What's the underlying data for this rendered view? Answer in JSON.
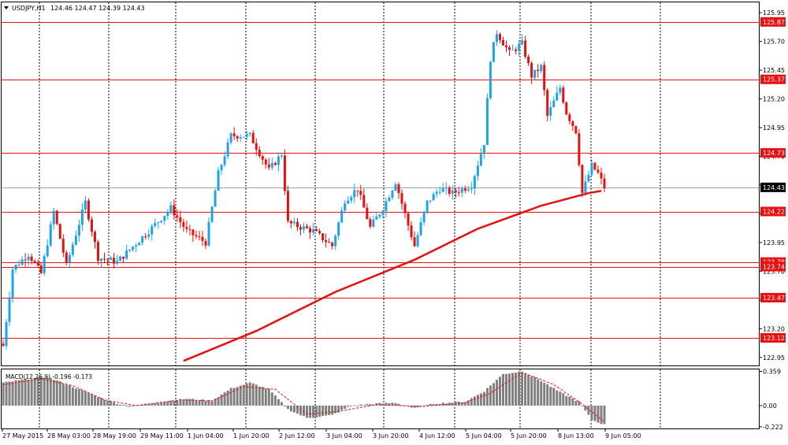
{
  "header": {
    "symbol_text": "USDJPY,H1",
    "ohlc_text": "124.46 124.47 124.39 124.43"
  },
  "colors": {
    "bull": "#1fa3e8",
    "bear": "#e51010",
    "level_line": "#e81010",
    "ma_line": "#e81010",
    "grid": "#000000",
    "bid_line": "#9aa8a8",
    "macd_bars": "#808080",
    "macd_signal": "#e81010"
  },
  "chart_data": [
    {
      "type": "candlestick",
      "symbol": "USDJPY",
      "timeframe": "H1",
      "ylim": [
        122.88,
        126.04
      ],
      "y_ticks": [
        "125.95",
        "125.70",
        "125.45",
        "125.20",
        "124.95",
        "124.70",
        "124.45",
        "124.20",
        "123.95",
        "123.70",
        "123.45",
        "123.20",
        "122.95"
      ],
      "x_ticks": [
        "27 May 2015",
        "28 May 03:00",
        "28 May 19:00",
        "29 May 11:00",
        "1 Jun 04:00",
        "1 Jun 20:00",
        "2 Jun 12:00",
        "3 Jun 04:00",
        "3 Jun 20:00",
        "4 Jun 12:00",
        "5 Jun 04:00",
        "5 Jun 20:00",
        "8 Jun 13:00",
        "9 Jun 05:00"
      ],
      "grid": "vertical dotted separators at day boundaries",
      "current_price": "124.43",
      "horizontal_levels": [
        "125.87",
        "125.37",
        "124.73",
        "124.22",
        "123.78",
        "123.74",
        "123.47",
        "123.12"
      ],
      "moving_average": {
        "points": [
          {
            "bar": 57,
            "price": 122.92
          },
          {
            "bar": 80,
            "price": 123.18
          },
          {
            "bar": 105,
            "price": 123.52
          },
          {
            "bar": 130,
            "price": 123.8
          },
          {
            "bar": 150,
            "price": 124.07
          },
          {
            "bar": 170,
            "price": 124.27
          },
          {
            "bar": 185,
            "price": 124.38
          },
          {
            "bar": 189,
            "price": 124.4
          }
        ]
      },
      "ohlc_anchor_closes": [
        {
          "bar": 0,
          "close": 123.05
        },
        {
          "bar": 3,
          "close": 123.72
        },
        {
          "bar": 8,
          "close": 123.85
        },
        {
          "bar": 12,
          "close": 123.68
        },
        {
          "bar": 16,
          "close": 124.22
        },
        {
          "bar": 20,
          "close": 123.75
        },
        {
          "bar": 26,
          "close": 124.3
        },
        {
          "bar": 30,
          "close": 123.82
        },
        {
          "bar": 36,
          "close": 123.78
        },
        {
          "bar": 46,
          "close": 124.05
        },
        {
          "bar": 53,
          "close": 124.25
        },
        {
          "bar": 58,
          "close": 124.05
        },
        {
          "bar": 64,
          "close": 123.95
        },
        {
          "bar": 68,
          "close": 124.55
        },
        {
          "bar": 72,
          "close": 124.88
        },
        {
          "bar": 78,
          "close": 124.88
        },
        {
          "bar": 84,
          "close": 124.58
        },
        {
          "bar": 88,
          "close": 124.72
        },
        {
          "bar": 90,
          "close": 124.12
        },
        {
          "bar": 98,
          "close": 124.05
        },
        {
          "bar": 104,
          "close": 123.92
        },
        {
          "bar": 108,
          "close": 124.32
        },
        {
          "bar": 112,
          "close": 124.42
        },
        {
          "bar": 116,
          "close": 124.08
        },
        {
          "bar": 120,
          "close": 124.25
        },
        {
          "bar": 124,
          "close": 124.48
        },
        {
          "bar": 128,
          "close": 124.1
        },
        {
          "bar": 130,
          "close": 123.92
        },
        {
          "bar": 134,
          "close": 124.3
        },
        {
          "bar": 138,
          "close": 124.42
        },
        {
          "bar": 142,
          "close": 124.38
        },
        {
          "bar": 148,
          "close": 124.45
        },
        {
          "bar": 152,
          "close": 124.82
        },
        {
          "bar": 154,
          "close": 125.55
        },
        {
          "bar": 156,
          "close": 125.78
        },
        {
          "bar": 160,
          "close": 125.6
        },
        {
          "bar": 164,
          "close": 125.68
        },
        {
          "bar": 167,
          "close": 125.4
        },
        {
          "bar": 170,
          "close": 125.48
        },
        {
          "bar": 172,
          "close": 125.05
        },
        {
          "bar": 176,
          "close": 125.3
        },
        {
          "bar": 178,
          "close": 125.08
        },
        {
          "bar": 181,
          "close": 124.92
        },
        {
          "bar": 183,
          "close": 124.38
        },
        {
          "bar": 186,
          "close": 124.62
        },
        {
          "bar": 188,
          "close": 124.55
        },
        {
          "bar": 190,
          "close": 124.43
        }
      ]
    },
    {
      "type": "bar",
      "indicator": "MACD(12,26,9)",
      "label_text": "MACD(12,26,9) -0.196 -0.173",
      "ylim": [
        -0.24,
        0.38
      ],
      "y_ticks": [
        "0.359",
        "0.00",
        "-0.222"
      ],
      "hist_anchors": [
        {
          "bar": 0,
          "value": 0.24
        },
        {
          "bar": 8,
          "value": 0.28
        },
        {
          "bar": 14,
          "value": 0.3
        },
        {
          "bar": 24,
          "value": 0.17
        },
        {
          "bar": 34,
          "value": 0.04
        },
        {
          "bar": 40,
          "value": -0.01
        },
        {
          "bar": 50,
          "value": 0.04
        },
        {
          "bar": 58,
          "value": 0.07
        },
        {
          "bar": 66,
          "value": 0.05
        },
        {
          "bar": 72,
          "value": 0.18
        },
        {
          "bar": 78,
          "value": 0.24
        },
        {
          "bar": 84,
          "value": 0.17
        },
        {
          "bar": 90,
          "value": -0.04
        },
        {
          "bar": 96,
          "value": -0.13
        },
        {
          "bar": 104,
          "value": -0.1
        },
        {
          "bar": 110,
          "value": 0.0
        },
        {
          "bar": 118,
          "value": 0.02
        },
        {
          "bar": 124,
          "value": 0.03
        },
        {
          "bar": 130,
          "value": -0.03
        },
        {
          "bar": 136,
          "value": 0.02
        },
        {
          "bar": 146,
          "value": 0.04
        },
        {
          "bar": 152,
          "value": 0.15
        },
        {
          "bar": 158,
          "value": 0.33
        },
        {
          "bar": 164,
          "value": 0.36
        },
        {
          "bar": 170,
          "value": 0.26
        },
        {
          "bar": 176,
          "value": 0.14
        },
        {
          "bar": 182,
          "value": 0.04
        },
        {
          "bar": 186,
          "value": -0.15
        },
        {
          "bar": 190,
          "value": -0.2
        }
      ],
      "signal_anchors": [
        {
          "bar": 0,
          "value": 0.22
        },
        {
          "bar": 12,
          "value": 0.28
        },
        {
          "bar": 22,
          "value": 0.21
        },
        {
          "bar": 32,
          "value": 0.06
        },
        {
          "bar": 42,
          "value": 0.0
        },
        {
          "bar": 56,
          "value": 0.06
        },
        {
          "bar": 66,
          "value": 0.05
        },
        {
          "bar": 76,
          "value": 0.2
        },
        {
          "bar": 86,
          "value": 0.17
        },
        {
          "bar": 96,
          "value": -0.09
        },
        {
          "bar": 106,
          "value": -0.06
        },
        {
          "bar": 118,
          "value": 0.01
        },
        {
          "bar": 132,
          "value": -0.01
        },
        {
          "bar": 146,
          "value": 0.03
        },
        {
          "bar": 154,
          "value": 0.13
        },
        {
          "bar": 164,
          "value": 0.35
        },
        {
          "bar": 174,
          "value": 0.22
        },
        {
          "bar": 182,
          "value": 0.04
        },
        {
          "bar": 190,
          "value": -0.17
        }
      ]
    }
  ]
}
